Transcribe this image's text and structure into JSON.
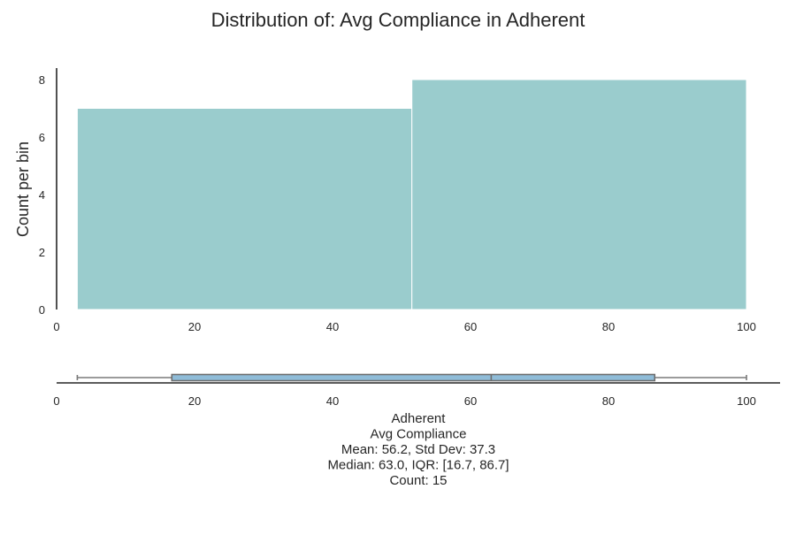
{
  "chart_data": [
    {
      "type": "histogram",
      "title": "Distribution of: Avg Compliance in Adherent",
      "xlabel": "",
      "ylabel": "Count per bin",
      "xlim": [
        0,
        100
      ],
      "ylim": [
        0,
        8.4
      ],
      "x_ticks": [
        0,
        20,
        40,
        60,
        80,
        100
      ],
      "y_ticks": [
        0,
        2,
        4,
        6,
        8
      ],
      "bins": [
        {
          "start": 3,
          "end": 51.5,
          "count": 7
        },
        {
          "start": 51.5,
          "end": 100,
          "count": 8
        }
      ],
      "color": "#9acccd",
      "grid": false
    },
    {
      "type": "boxplot",
      "xlim": [
        0,
        100
      ],
      "x_ticks": [
        0,
        20,
        40,
        60,
        80,
        100
      ],
      "min": 3,
      "q1": 16.7,
      "median": 63.0,
      "q3": 86.7,
      "max": 100,
      "color": "#8fbcd8",
      "stats_lines": [
        "Adherent",
        "Avg Compliance",
        "Mean: 56.2, Std Dev: 37.3",
        "Median: 63.0, IQR: [16.7, 86.7]",
        "Count: 15"
      ]
    }
  ]
}
